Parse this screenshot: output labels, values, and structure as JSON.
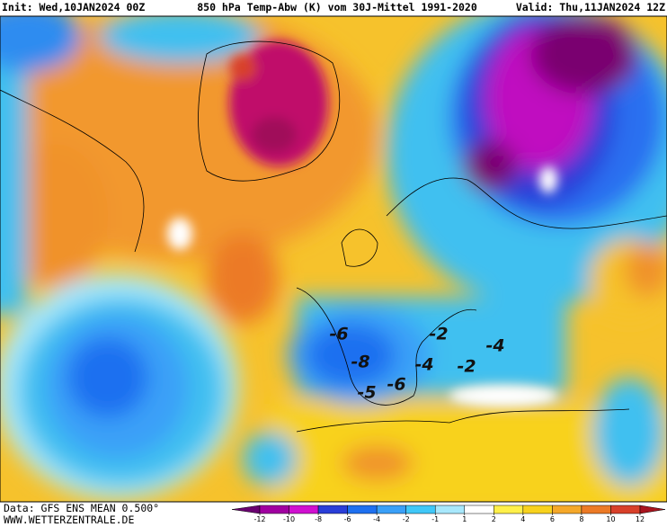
{
  "header": {
    "init": "Init: Wed,10JAN2024 00Z",
    "title": "850 hPa Temp-Abw (K) vom 30J-Mittel 1991-2020",
    "valid": "Valid: Thu,11JAN2024 12Z"
  },
  "map": {
    "labels": [
      -6,
      -2,
      -4,
      -8,
      -4,
      -2,
      -5,
      -6
    ]
  },
  "footer": {
    "data": "Data: GFS ENS MEAN 0.500°",
    "site": "WWW.WETTERZENTRALE.DE"
  },
  "legend": {
    "ticks": [
      -12,
      -10,
      -8,
      -6,
      -4,
      -2,
      -1,
      1,
      2,
      4,
      6,
      8,
      10,
      12
    ],
    "colors": [
      "#6a0070",
      "#a000a0",
      "#d010d0",
      "#2a3ed8",
      "#1e70f0",
      "#3aa0f8",
      "#40c8f8",
      "#a8e8fc",
      "#ffffff",
      "#fff04a",
      "#f8d21e",
      "#f5a82a",
      "#ec7a26",
      "#d8402a",
      "#a8141e"
    ]
  }
}
